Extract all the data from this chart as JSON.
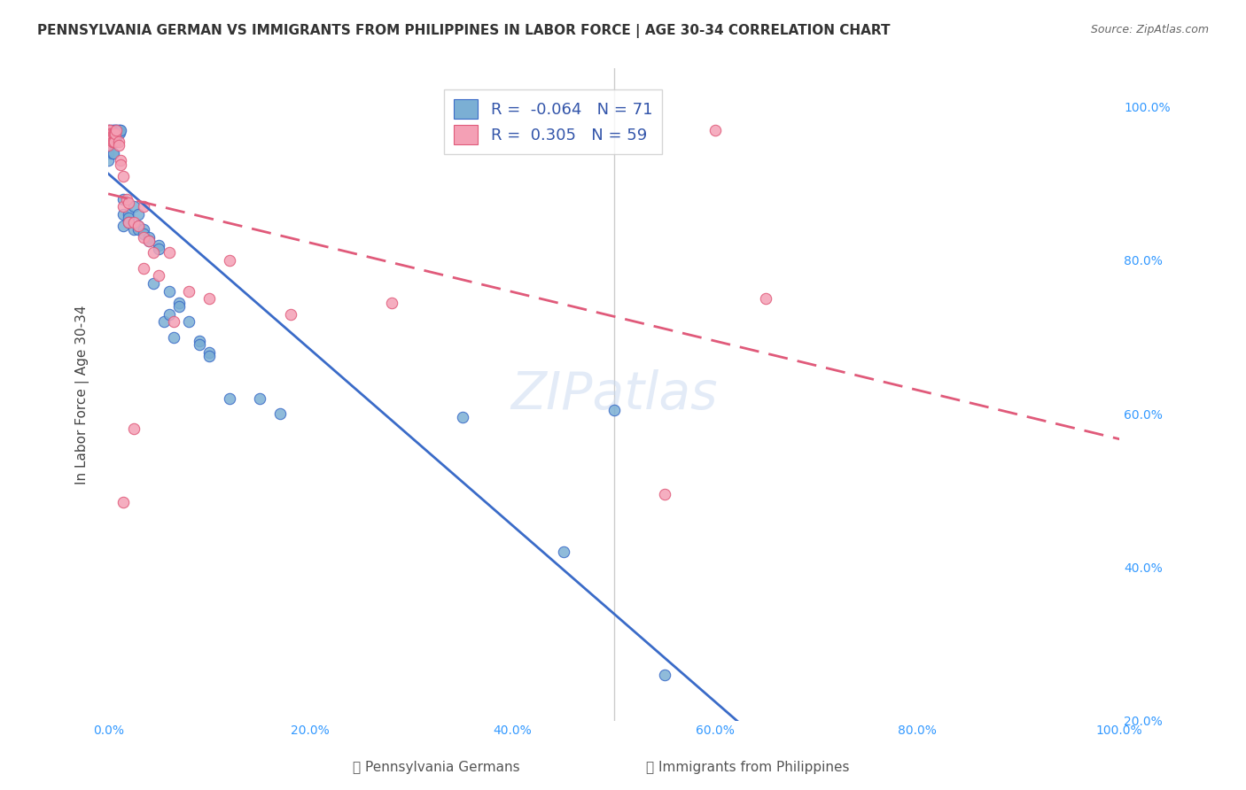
{
  "title": "PENNSYLVANIA GERMAN VS IMMIGRANTS FROM PHILIPPINES IN LABOR FORCE | AGE 30-34 CORRELATION CHART",
  "source": "Source: ZipAtlas.com",
  "ylabel": "In Labor Force | Age 30-34",
  "xlabel": "",
  "xlim": [
    0,
    1.0
  ],
  "ylim": [
    0.2,
    1.05
  ],
  "blue_R": -0.064,
  "blue_N": 71,
  "pink_R": 0.305,
  "pink_N": 59,
  "blue_color": "#7bafd4",
  "pink_color": "#f4a0b5",
  "blue_line_color": "#3a6bc8",
  "pink_line_color": "#e05a7a",
  "blue_scatter": [
    [
      0.0,
      0.97
    ],
    [
      0.0,
      0.96
    ],
    [
      0.0,
      0.95
    ],
    [
      0.0,
      0.94
    ],
    [
      0.0,
      0.93
    ],
    [
      0.002,
      0.97
    ],
    [
      0.002,
      0.96
    ],
    [
      0.002,
      0.95
    ],
    [
      0.003,
      0.97
    ],
    [
      0.003,
      0.96
    ],
    [
      0.004,
      0.965
    ],
    [
      0.004,
      0.955
    ],
    [
      0.004,
      0.94
    ],
    [
      0.005,
      0.97
    ],
    [
      0.005,
      0.965
    ],
    [
      0.005,
      0.96
    ],
    [
      0.005,
      0.955
    ],
    [
      0.005,
      0.94
    ],
    [
      0.006,
      0.97
    ],
    [
      0.006,
      0.965
    ],
    [
      0.006,
      0.96
    ],
    [
      0.006,
      0.955
    ],
    [
      0.007,
      0.97
    ],
    [
      0.007,
      0.966
    ],
    [
      0.007,
      0.96
    ],
    [
      0.007,
      0.955
    ],
    [
      0.008,
      0.97
    ],
    [
      0.008,
      0.965
    ],
    [
      0.008,
      0.96
    ],
    [
      0.009,
      0.97
    ],
    [
      0.009,
      0.965
    ],
    [
      0.01,
      0.97
    ],
    [
      0.01,
      0.966
    ],
    [
      0.011,
      0.97
    ],
    [
      0.011,
      0.966
    ],
    [
      0.012,
      0.97
    ],
    [
      0.015,
      0.88
    ],
    [
      0.015,
      0.86
    ],
    [
      0.015,
      0.845
    ],
    [
      0.02,
      0.86
    ],
    [
      0.02,
      0.855
    ],
    [
      0.02,
      0.85
    ],
    [
      0.025,
      0.87
    ],
    [
      0.025,
      0.84
    ],
    [
      0.03,
      0.86
    ],
    [
      0.03,
      0.845
    ],
    [
      0.03,
      0.84
    ],
    [
      0.035,
      0.84
    ],
    [
      0.035,
      0.835
    ],
    [
      0.04,
      0.83
    ],
    [
      0.04,
      0.825
    ],
    [
      0.045,
      0.77
    ],
    [
      0.05,
      0.82
    ],
    [
      0.05,
      0.815
    ],
    [
      0.055,
      0.72
    ],
    [
      0.06,
      0.76
    ],
    [
      0.06,
      0.73
    ],
    [
      0.065,
      0.7
    ],
    [
      0.07,
      0.745
    ],
    [
      0.07,
      0.74
    ],
    [
      0.08,
      0.72
    ],
    [
      0.09,
      0.695
    ],
    [
      0.09,
      0.69
    ],
    [
      0.1,
      0.68
    ],
    [
      0.1,
      0.675
    ],
    [
      0.12,
      0.62
    ],
    [
      0.15,
      0.62
    ],
    [
      0.17,
      0.6
    ],
    [
      0.35,
      0.595
    ],
    [
      0.45,
      0.42
    ],
    [
      0.5,
      0.605
    ],
    [
      0.55,
      0.26
    ]
  ],
  "pink_scatter": [
    [
      0.0,
      0.97
    ],
    [
      0.0,
      0.965
    ],
    [
      0.0,
      0.96
    ],
    [
      0.0,
      0.955
    ],
    [
      0.0,
      0.95
    ],
    [
      0.002,
      0.97
    ],
    [
      0.002,
      0.965
    ],
    [
      0.002,
      0.96
    ],
    [
      0.003,
      0.965
    ],
    [
      0.003,
      0.96
    ],
    [
      0.004,
      0.96
    ],
    [
      0.004,
      0.955
    ],
    [
      0.005,
      0.965
    ],
    [
      0.005,
      0.955
    ],
    [
      0.006,
      0.965
    ],
    [
      0.006,
      0.955
    ],
    [
      0.007,
      0.965
    ],
    [
      0.008,
      0.97
    ],
    [
      0.01,
      0.955
    ],
    [
      0.01,
      0.95
    ],
    [
      0.012,
      0.93
    ],
    [
      0.012,
      0.925
    ],
    [
      0.015,
      0.91
    ],
    [
      0.015,
      0.87
    ],
    [
      0.018,
      0.88
    ],
    [
      0.02,
      0.875
    ],
    [
      0.02,
      0.85
    ],
    [
      0.025,
      0.85
    ],
    [
      0.03,
      0.845
    ],
    [
      0.035,
      0.87
    ],
    [
      0.035,
      0.83
    ],
    [
      0.035,
      0.79
    ],
    [
      0.04,
      0.825
    ],
    [
      0.045,
      0.81
    ],
    [
      0.05,
      0.78
    ],
    [
      0.06,
      0.81
    ],
    [
      0.065,
      0.72
    ],
    [
      0.08,
      0.76
    ],
    [
      0.1,
      0.75
    ],
    [
      0.12,
      0.8
    ],
    [
      0.18,
      0.73
    ],
    [
      0.28,
      0.745
    ],
    [
      0.55,
      0.495
    ],
    [
      0.6,
      0.97
    ],
    [
      0.65,
      0.75
    ],
    [
      0.025,
      0.58
    ],
    [
      0.015,
      0.485
    ]
  ],
  "grid_color": "#dddddd",
  "background_color": "#ffffff",
  "ytick_labels": [
    "20.0%",
    "40.0%",
    "60.0%",
    "80.0%",
    "100.0%"
  ],
  "ytick_values": [
    0.2,
    0.4,
    0.6,
    0.8,
    1.0
  ],
  "xtick_labels": [
    "0.0%",
    "20.0%",
    "40.0%",
    "60.0%",
    "80.0%",
    "100.0%"
  ],
  "xtick_values": [
    0.0,
    0.2,
    0.4,
    0.6,
    0.8,
    1.0
  ]
}
